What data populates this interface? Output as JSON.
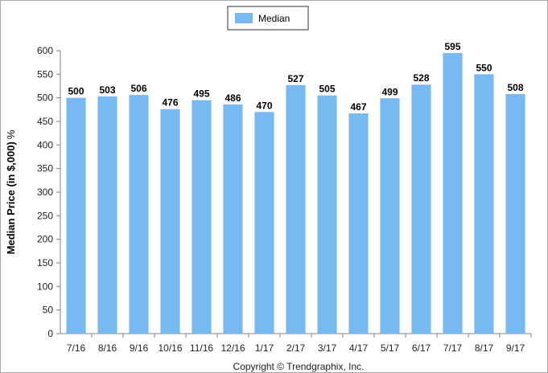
{
  "chart_data": {
    "type": "bar",
    "categories": [
      "7/16",
      "8/16",
      "9/16",
      "10/16",
      "11/16",
      "12/16",
      "1/17",
      "2/17",
      "3/17",
      "4/17",
      "5/17",
      "6/17",
      "7/17",
      "8/17",
      "9/17"
    ],
    "series": [
      {
        "name": "Median",
        "values": [
          500,
          503,
          506,
          476,
          495,
          486,
          470,
          527,
          505,
          467,
          499,
          528,
          595,
          550,
          508
        ]
      }
    ],
    "ylabel": "Median Price (in $,000)",
    "ylabel_suffix": "%",
    "ylim": [
      0,
      600
    ],
    "yticks": [
      0,
      50,
      100,
      150,
      200,
      250,
      300,
      350,
      400,
      450,
      500,
      550,
      600
    ],
    "grid": false,
    "legend_position": "top-center",
    "copyright": "Copyright © Trendgraphix, Inc.",
    "colors": {
      "bar": "#78b9f2",
      "axis": "#808080",
      "frame": "#a9a9a9"
    }
  }
}
